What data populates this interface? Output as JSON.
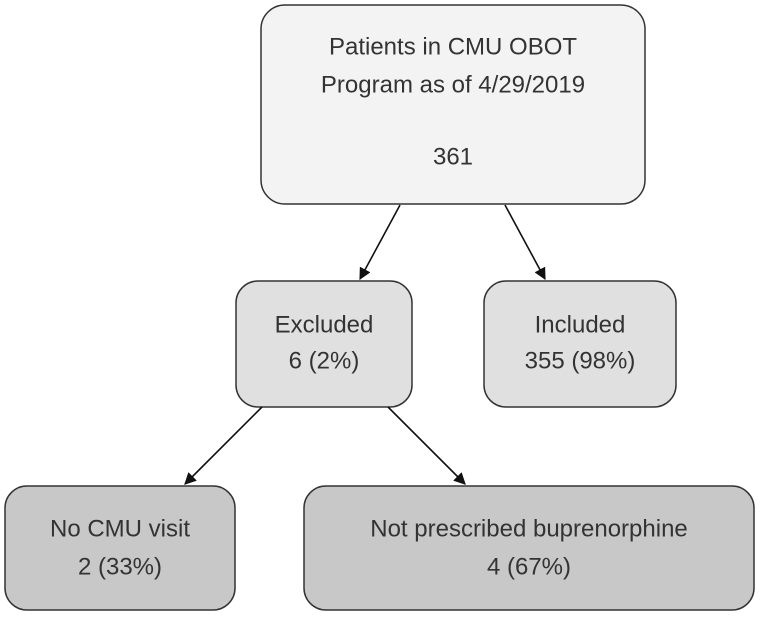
{
  "nodes": [
    {
      "lines": [
        "Patients in CMU OBOT",
        "Program as of 4/29/2019",
        "361"
      ]
    },
    {
      "lines": [
        "Excluded",
        "6 (2%)"
      ]
    },
    {
      "lines": [
        "Included",
        "355 (98%)"
      ]
    },
    {
      "lines": [
        "No CMU visit",
        "2 (33%)"
      ]
    },
    {
      "lines": [
        "Not prescribed buprenorphine",
        "4 (67%)"
      ]
    }
  ]
}
